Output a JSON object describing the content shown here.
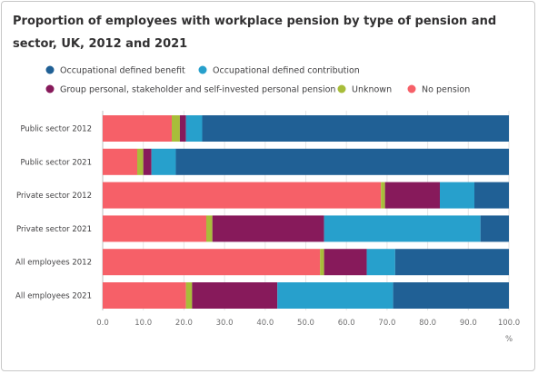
{
  "chart_data": {
    "type": "bar",
    "orientation": "horizontal",
    "stacked": true,
    "title": "Proportion of employees with workplace pension by type of pension and sector, UK, 2012 and 2021",
    "xlabel": "%",
    "ylabel": "",
    "xlim": [
      0,
      100
    ],
    "xticks": [
      "0.0",
      "10.0",
      "20.0",
      "30.0",
      "40.0",
      "50.0",
      "60.0",
      "70.0",
      "80.0",
      "90.0",
      "100.0"
    ],
    "grid": true,
    "legend_position": "top",
    "categories": [
      "Public sector 2012",
      "Public sector 2021",
      "Private sector 2012",
      "Private sector 2021",
      "All employees 2012",
      "All employees 2021"
    ],
    "series": [
      {
        "name": "No pension",
        "color": "#f66068",
        "values": [
          17,
          8.5,
          68.5,
          25.5,
          53.5,
          20.5
        ]
      },
      {
        "name": "Unknown",
        "color": "#a8bd3a",
        "values": [
          2,
          1.5,
          1,
          1.5,
          1,
          1.5
        ]
      },
      {
        "name": "Group personal, stakeholder and self-invested personal pension",
        "color": "#871a5b",
        "values": [
          1.5,
          2,
          13.5,
          27.5,
          10.5,
          21
        ]
      },
      {
        "name": "Occupational defined contribution",
        "color": "#27a0cc",
        "values": [
          4,
          6,
          8.5,
          38.5,
          7,
          28.5
        ]
      },
      {
        "name": "Occupational defined benefit",
        "color": "#206095",
        "values": [
          75.5,
          82,
          8.5,
          7,
          28,
          28.5
        ]
      }
    ],
    "legend_order": [
      "Occupational defined benefit",
      "Occupational defined contribution",
      "Group personal, stakeholder and self-invested personal pension",
      "Unknown",
      "No pension"
    ]
  }
}
